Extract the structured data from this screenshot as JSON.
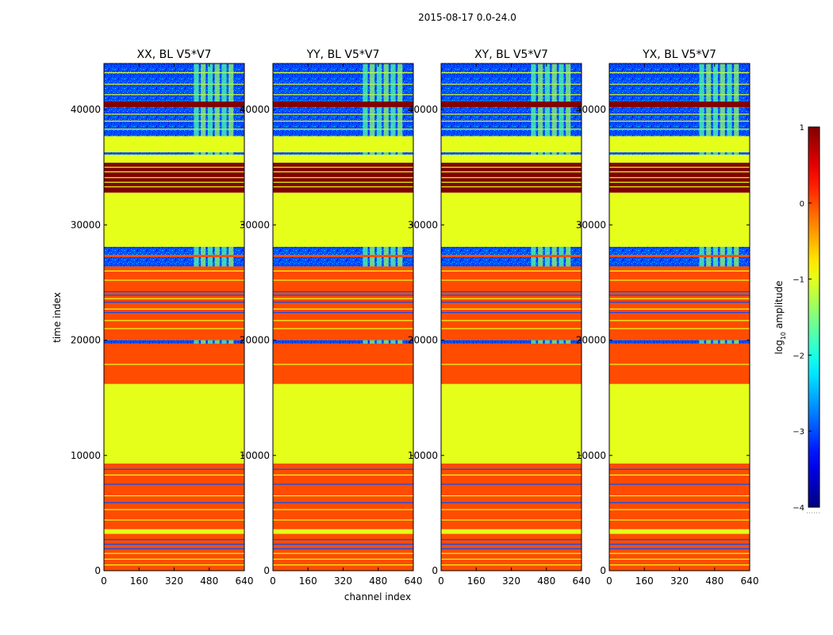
{
  "suptitle": "2015-08-17 0.0-24.0",
  "chart_data": {
    "type": "heatmap",
    "xlabel": "channel index",
    "ylabel": "time index",
    "xlim": [
      0,
      640
    ],
    "ylim": [
      0,
      44000
    ],
    "x_ticks": [
      0,
      160,
      320,
      480,
      640
    ],
    "y_ticks": [
      0,
      10000,
      20000,
      30000,
      40000
    ],
    "x_tick_labels": [
      "0",
      "160",
      "320",
      "480",
      "640"
    ],
    "y_tick_labels": [
      "0",
      "10000",
      "20000",
      "30000",
      "40000"
    ],
    "panels": [
      {
        "title": "XX, BL V5*V7",
        "pol": "XX"
      },
      {
        "title": "YY, BL V5*V7",
        "pol": "YY"
      },
      {
        "title": "XY, BL V5*V7",
        "pol": "XY"
      },
      {
        "title": "YX, BL V5*V7",
        "pol": "YX"
      }
    ],
    "colorbar": {
      "label": "log10 amplitude",
      "label_prefix": "log",
      "label_subscript": "10",
      "label_suffix": " amplitude",
      "range": [
        -4,
        1
      ],
      "ticks": [
        1,
        0,
        -1,
        -2,
        -3,
        -4
      ],
      "tick_labels": [
        "1",
        "0",
        "−1",
        "−2",
        "−3",
        "−4"
      ],
      "colormap": "jet"
    },
    "bands": [
      {
        "t0": 0,
        "t1": 3200,
        "value": 0.0,
        "kind": "flat"
      },
      {
        "t0": 3200,
        "t1": 3600,
        "value": -1.0,
        "kind": "flat"
      },
      {
        "t0": 3600,
        "t1": 9300,
        "value": 0.0,
        "kind": "flat"
      },
      {
        "t0": 9300,
        "t1": 16200,
        "value": -1.0,
        "kind": "flat"
      },
      {
        "t0": 16200,
        "t1": 19700,
        "value": 0.0,
        "kind": "flat"
      },
      {
        "t0": 19700,
        "t1": 20000,
        "value": -3.0,
        "kind": "noise"
      },
      {
        "t0": 20000,
        "t1": 26400,
        "value": 0.0,
        "kind": "flat"
      },
      {
        "t0": 26400,
        "t1": 27200,
        "value": -3.0,
        "kind": "noise"
      },
      {
        "t0": 27200,
        "t1": 27400,
        "value": 0.0,
        "kind": "flat"
      },
      {
        "t0": 27400,
        "t1": 28100,
        "value": -3.0,
        "kind": "noise"
      },
      {
        "t0": 28100,
        "t1": 32800,
        "value": -1.0,
        "kind": "flat"
      },
      {
        "t0": 32800,
        "t1": 35400,
        "value": 1.0,
        "kind": "flat"
      },
      {
        "t0": 35400,
        "t1": 36100,
        "value": -1.0,
        "kind": "flat"
      },
      {
        "t0": 36100,
        "t1": 36300,
        "value": -3.0,
        "kind": "noise"
      },
      {
        "t0": 36300,
        "t1": 37700,
        "value": -1.0,
        "kind": "flat"
      },
      {
        "t0": 37700,
        "t1": 40200,
        "value": -3.0,
        "kind": "noise"
      },
      {
        "t0": 40200,
        "t1": 40700,
        "value": 1.0,
        "kind": "flat"
      },
      {
        "t0": 40700,
        "t1": 44000,
        "value": -3.0,
        "kind": "noise"
      }
    ],
    "thin_lines": [
      {
        "t": 500,
        "value": -1.0
      },
      {
        "t": 1000,
        "value": -1.0
      },
      {
        "t": 1500,
        "value": -1.0
      },
      {
        "t": 1900,
        "value": -3.0
      },
      {
        "t": 2300,
        "value": -3.0
      },
      {
        "t": 2700,
        "value": -3.0
      },
      {
        "t": 4400,
        "value": -1.0
      },
      {
        "t": 5300,
        "value": -1.0
      },
      {
        "t": 5900,
        "value": -3.0
      },
      {
        "t": 6500,
        "value": -1.0
      },
      {
        "t": 7500,
        "value": -3.0
      },
      {
        "t": 8300,
        "value": -1.0
      },
      {
        "t": 8800,
        "value": -3.0
      },
      {
        "t": 17900,
        "value": -1.0
      },
      {
        "t": 21000,
        "value": -1.0
      },
      {
        "t": 21700,
        "value": -1.0
      },
      {
        "t": 22400,
        "value": -3.0
      },
      {
        "t": 22700,
        "value": -1.0
      },
      {
        "t": 23300,
        "value": -3.0
      },
      {
        "t": 23600,
        "value": -1.0
      },
      {
        "t": 23900,
        "value": -3.0
      },
      {
        "t": 24200,
        "value": -3.0
      },
      {
        "t": 25200,
        "value": -1.0
      },
      {
        "t": 26000,
        "value": -1.0
      },
      {
        "t": 29000,
        "value": -1.0
      },
      {
        "t": 33300,
        "value": -1.0
      },
      {
        "t": 33700,
        "value": -1.0
      },
      {
        "t": 34100,
        "value": -1.0
      },
      {
        "t": 34600,
        "value": -1.0
      },
      {
        "t": 35000,
        "value": -1.0
      },
      {
        "t": 38300,
        "value": -1.0
      },
      {
        "t": 39000,
        "value": -1.0
      },
      {
        "t": 39600,
        "value": -1.0
      },
      {
        "t": 41300,
        "value": -1.0
      },
      {
        "t": 42200,
        "value": -1.0
      },
      {
        "t": 43200,
        "value": -1.0
      }
    ],
    "rfi_channel_range": [
      410,
      600
    ],
    "rfi_value": -1.7
  }
}
